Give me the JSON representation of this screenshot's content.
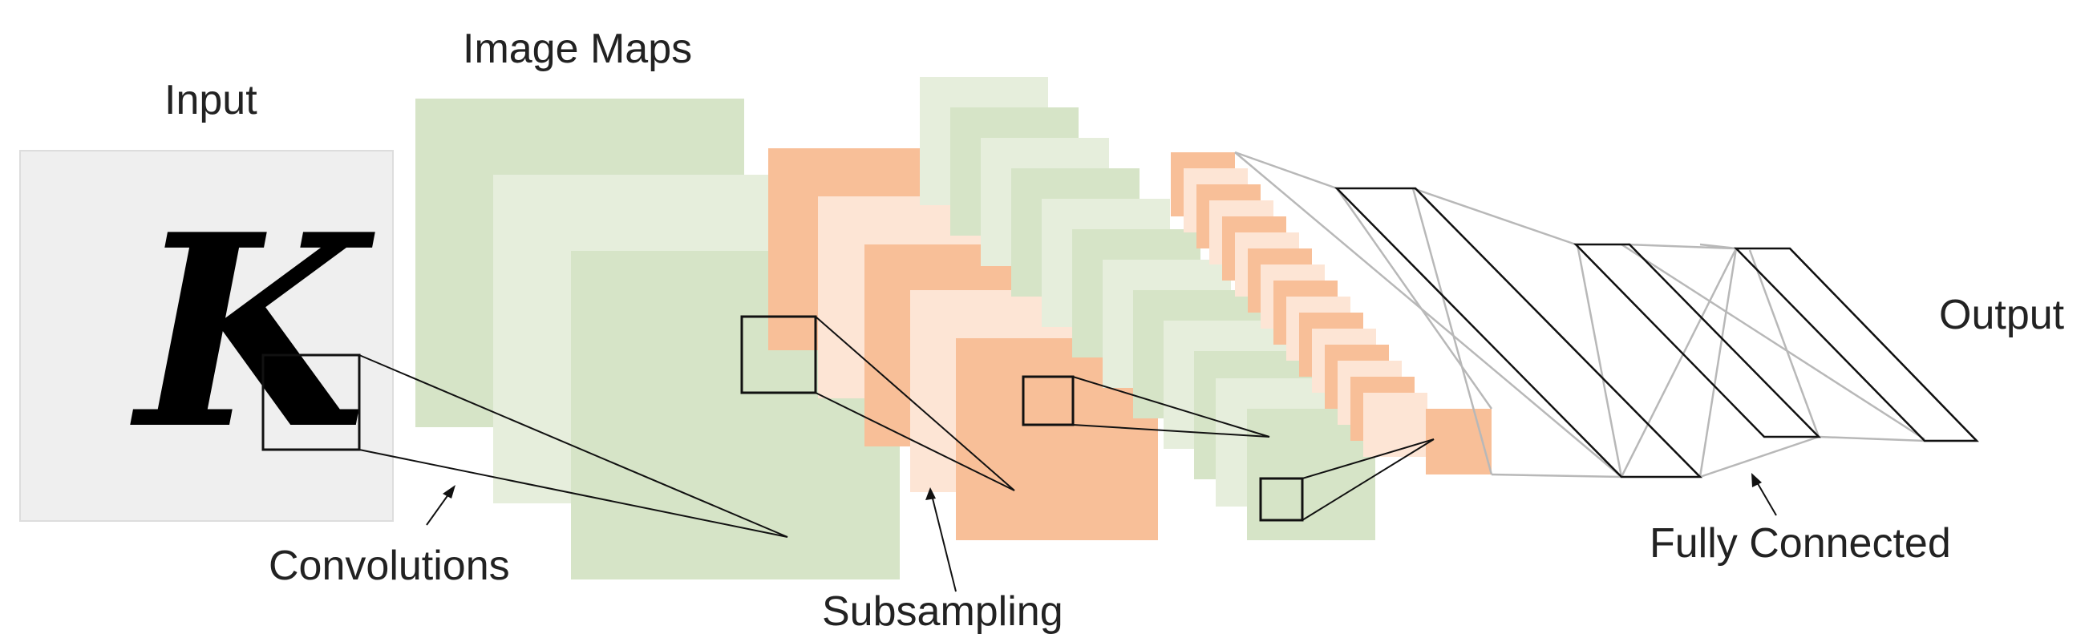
{
  "labels": {
    "input": "Input",
    "image_maps": "Image Maps",
    "convolutions": "Convolutions",
    "subsampling": "Subsampling",
    "fully_connected": "Fully Connected",
    "output": "Output"
  },
  "input_glyph": "K",
  "colors": {
    "input_bg": "#efefef",
    "green": "#d6e4c7",
    "green_light": "#e6eedc",
    "orange": "#f8bf98",
    "orange_light": "#fde5d5",
    "connector_grey": "#b8b8b8",
    "line": "#111111"
  }
}
